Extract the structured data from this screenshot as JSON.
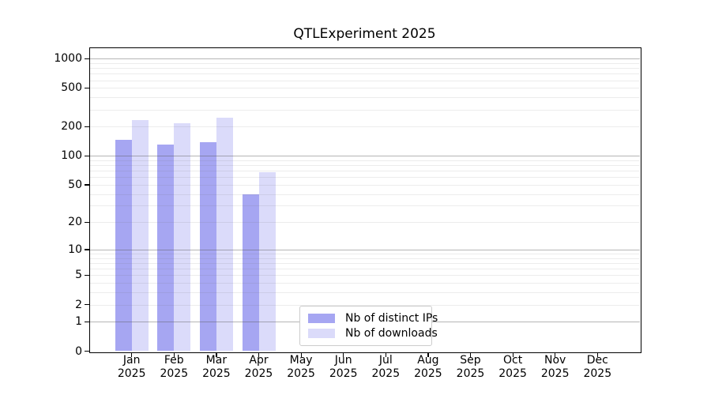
{
  "page": {
    "background": "#ffffff"
  },
  "chart_data": {
    "type": "bar",
    "title": "QTLExperiment 2025",
    "x_tick_months": [
      "Jan",
      "Feb",
      "Mar",
      "Apr",
      "May",
      "Jun",
      "Jul",
      "Aug",
      "Sep",
      "Oct",
      "Nov",
      "Dec"
    ],
    "x_tick_year": "2025",
    "y_ticks": [
      0,
      1,
      2,
      5,
      10,
      20,
      50,
      100,
      200,
      500,
      1000
    ],
    "y_scale": "log10(value+1)",
    "ylim": [
      0,
      1320
    ],
    "grid": "horizontal, major lines at 1/10/100/1000, minor at 2-9 per decade, drawn over bars",
    "legend_position": "lower-center-left inside plot",
    "series": [
      {
        "name": "Nb of distinct IPs",
        "color": "#a6a6f2",
        "values": [
          145,
          130,
          137,
          40,
          0,
          0,
          0,
          0,
          0,
          0,
          0,
          0
        ]
      },
      {
        "name": "Nb of downloads",
        "color": "#dbdbfa",
        "values": [
          235,
          216,
          248,
          68,
          0,
          0,
          0,
          0,
          0,
          0,
          0,
          0
        ]
      }
    ]
  }
}
